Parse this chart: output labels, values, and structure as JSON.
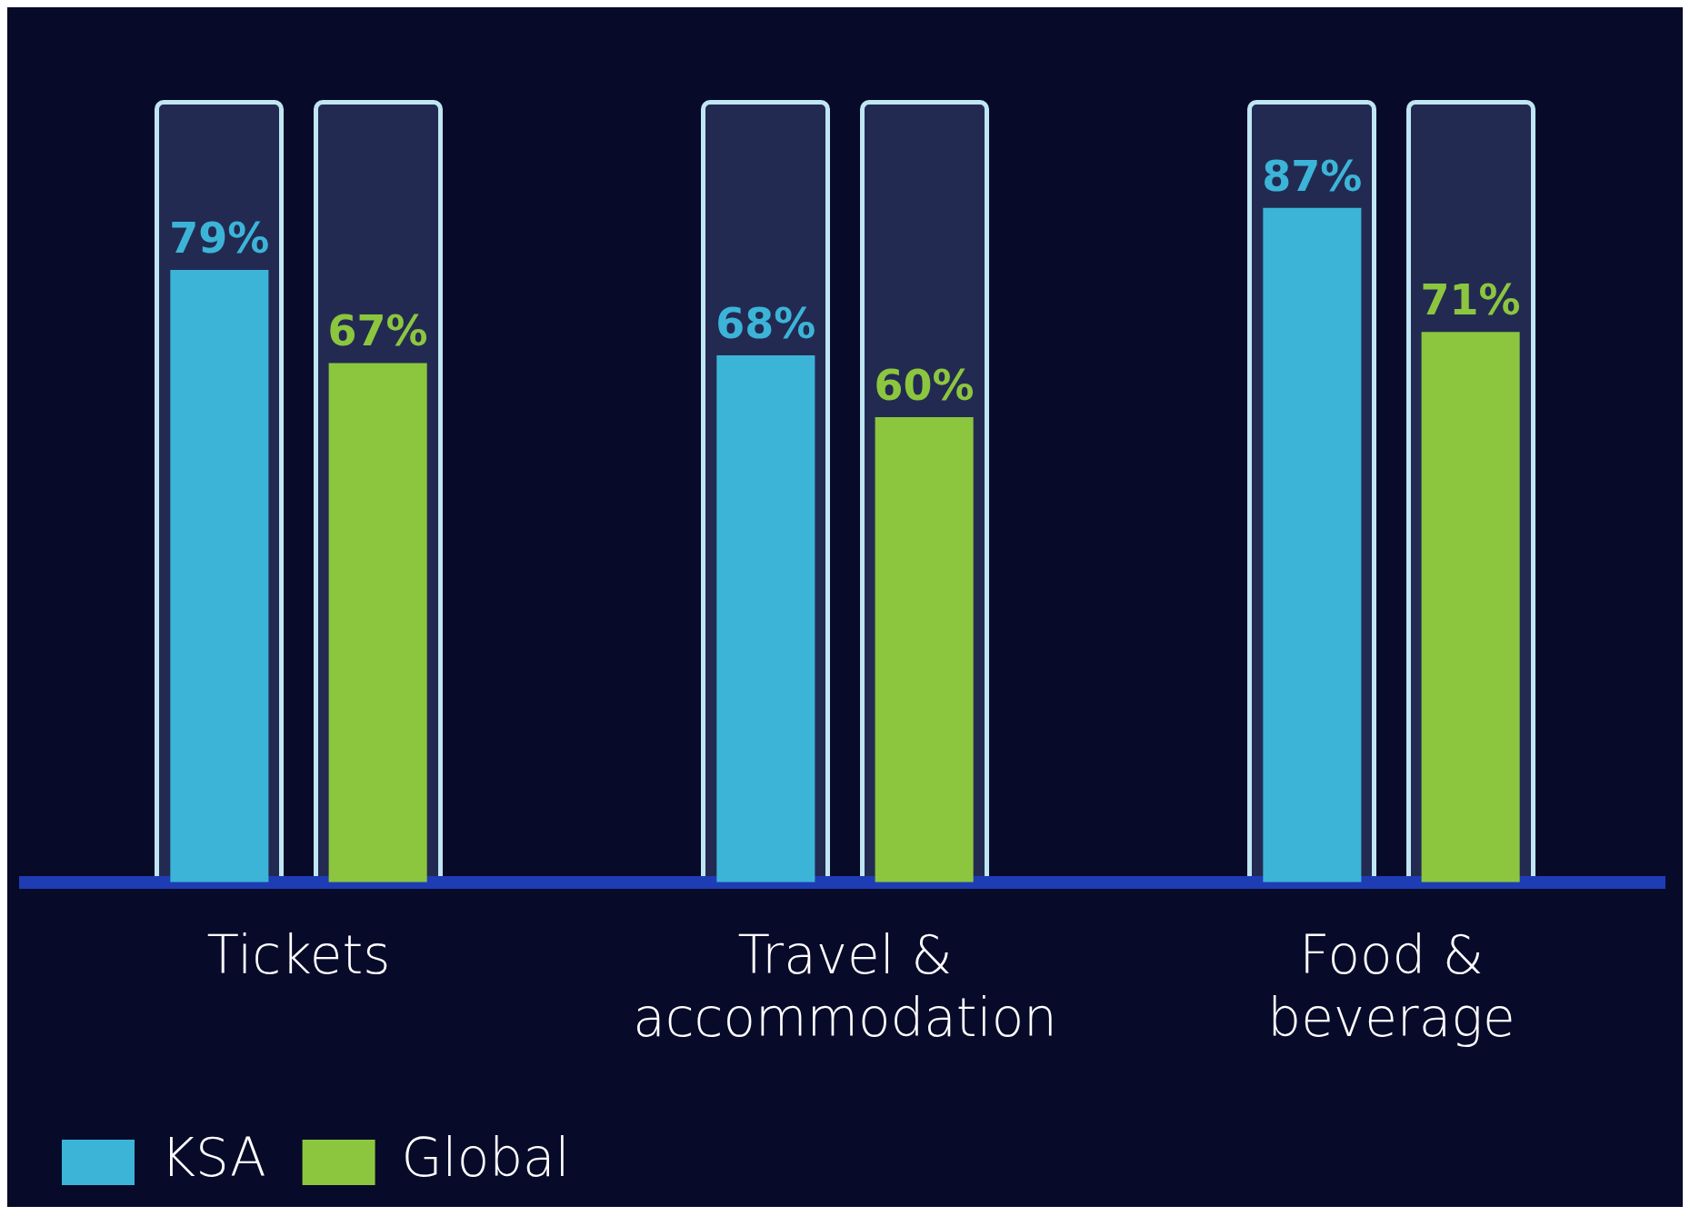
{
  "chart_data": {
    "type": "bar",
    "categories": [
      "Tickets",
      "Travel & accommodation",
      "Food & beverage"
    ],
    "series": [
      {
        "name": "KSA",
        "color": "#3cb4d8",
        "values": [
          79,
          68,
          87
        ],
        "value_labels": [
          "79%",
          "68%",
          "87%"
        ]
      },
      {
        "name": "Global",
        "color": "#8cc63f",
        "values": [
          67,
          60,
          71
        ],
        "value_labels": [
          "67%",
          "60%",
          "71%"
        ]
      }
    ],
    "tick_labels": "x",
    "legend": "bottom left"
  }
}
